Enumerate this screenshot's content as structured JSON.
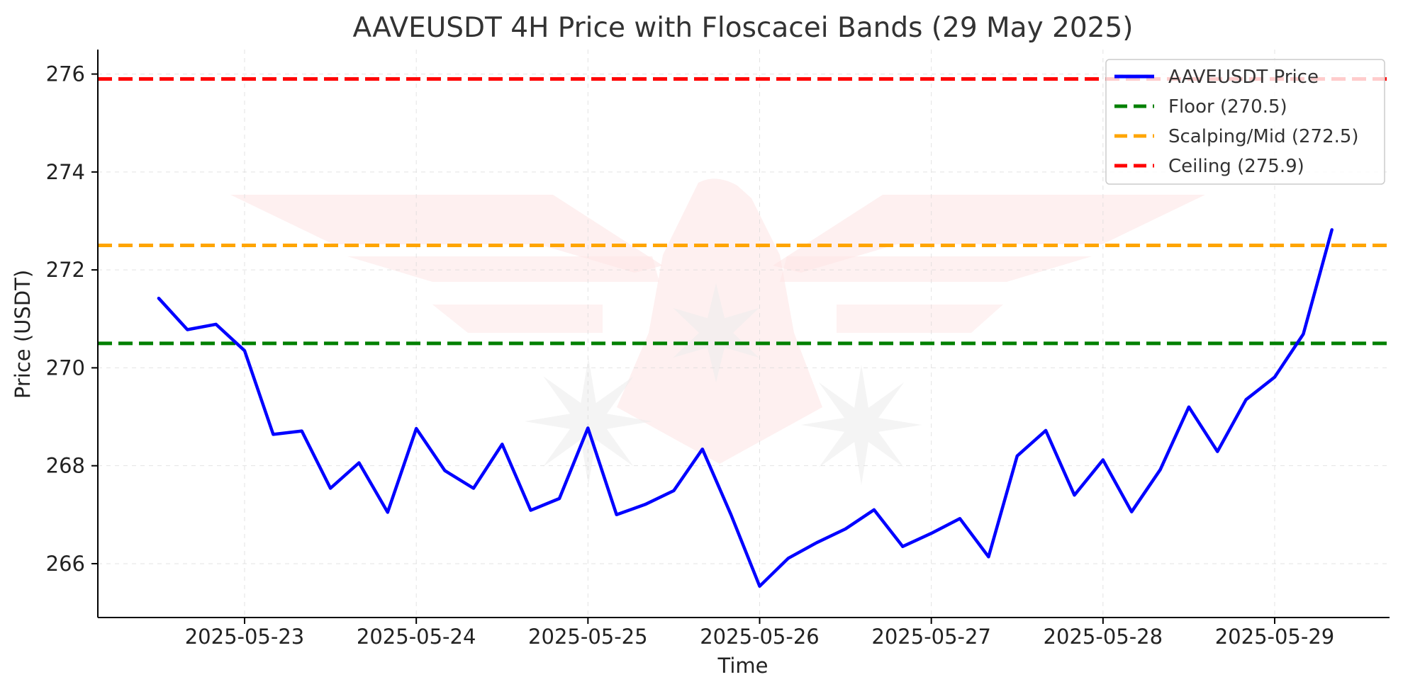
{
  "chart_data": {
    "type": "line",
    "title": "AAVEUSDT 4H Price with Floscacei Bands (29 May 2025)",
    "xlabel": "Time",
    "ylabel": "Price (USDT)",
    "ylim": [
      264.9,
      276.5
    ],
    "y_ticks": [
      266,
      268,
      270,
      272,
      274,
      276
    ],
    "x_ticks": [
      "2025-05-23",
      "2025-05-24",
      "2025-05-25",
      "2025-05-26",
      "2025-05-27",
      "2025-05-28",
      "2025-05-29"
    ],
    "x_start": "2025-05-22T12:00",
    "x_interval_hours": 4,
    "grid": true,
    "legend_position": "top-right",
    "series": [
      {
        "name": "AAVEUSDT Price",
        "color": "#0000ff",
        "style": "solid",
        "values": [
          271.42,
          270.78,
          270.89,
          270.35,
          268.64,
          268.71,
          267.54,
          268.06,
          267.05,
          268.76,
          267.9,
          267.54,
          268.44,
          267.09,
          267.33,
          268.77,
          267.0,
          267.21,
          267.49,
          268.34,
          267.0,
          265.54,
          266.11,
          266.43,
          266.71,
          267.1,
          266.35,
          266.62,
          266.92,
          266.14,
          268.2,
          268.72,
          267.4,
          268.12,
          267.06,
          267.92,
          269.2,
          268.29,
          269.35,
          269.81,
          270.69,
          272.82
        ]
      },
      {
        "name": "Floor (270.5)",
        "color": "#008000",
        "style": "dashed",
        "constant": 270.5
      },
      {
        "name": "Scalping/Mid (272.5)",
        "color": "#ffa500",
        "style": "dashed",
        "constant": 272.5
      },
      {
        "name": "Ceiling (275.9)",
        "color": "#ff0000",
        "style": "dashed",
        "constant": 275.9
      }
    ]
  }
}
